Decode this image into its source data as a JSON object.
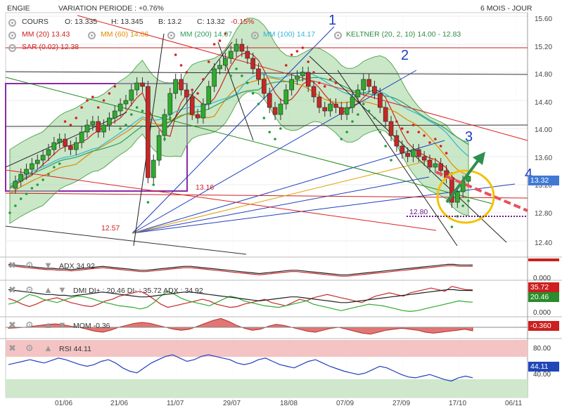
{
  "header": {
    "instrument": "ENGIE",
    "variation": "VARIATION PERIODE : +0.76%",
    "period": "6 MOIS - JOUR",
    "ohlc": {
      "label": "COURS",
      "open": "O: 13.335",
      "high": "H: 13.345",
      "low": "B: 13.2",
      "close": "C: 13.32",
      "change": "-0.15%"
    },
    "indicators": [
      {
        "label": "MM (20)",
        "value": "13.43",
        "color": "#cc2222"
      },
      {
        "label": "MM (60)",
        "value": "14.06",
        "color": "#e08a00"
      },
      {
        "label": "MM (200)",
        "value": "14.07",
        "color": "#2e9e5b"
      },
      {
        "label": "MM (100)",
        "value": "14.17",
        "color": "#33b5d6"
      },
      {
        "label": "KELTNER (20, 2, 10)",
        "value": "14.00 - 12.83",
        "color": "#2e8b3e"
      },
      {
        "label": "SAR (0.02)",
        "value": "12.38",
        "color": "#cc2222"
      }
    ]
  },
  "annotations": {
    "line_numbers": [
      "1",
      "2",
      "3",
      "4"
    ],
    "level_labels": [
      "13.16",
      "12.57",
      "12.80"
    ]
  },
  "panels": {
    "adx": {
      "label": "ADX",
      "value": "34.92",
      "tag": "0.000"
    },
    "dmi": {
      "label": "DMI",
      "text": "DI+ : 20.46 DI- : 35.72 ADX : 34.92",
      "tag_di_minus": "35.72",
      "tag_di_plus": "20.46",
      "tag_zero": "0.000"
    },
    "mom": {
      "label": "MOM",
      "value": "-0.36",
      "tag": "-0.360"
    },
    "rsi": {
      "label": "RSI",
      "value": "44.11",
      "tag": "44.11",
      "ticks": [
        "80.00",
        "40.00"
      ]
    }
  },
  "price_tag": "13.32",
  "icons": [
    "close-icon",
    "gear-icon",
    "arrow-up-icon",
    "arrow-down-icon"
  ],
  "chart_data": {
    "type": "line",
    "title": "ENGIE",
    "y_ticks": [
      "15.60",
      "15.20",
      "14.80",
      "14.40",
      "14.00",
      "13.60",
      "13.20",
      "12.80",
      "12.40"
    ],
    "x_ticks": [
      "01/06",
      "21/06",
      "11/07",
      "29/07",
      "18/08",
      "07/09",
      "27/09",
      "17/10",
      "06/11"
    ],
    "ylim": [
      12.25,
      15.65
    ],
    "last": 13.32,
    "series": [
      {
        "values": [
          13.15,
          13.25,
          13.35,
          13.42,
          13.5,
          13.55,
          13.62,
          13.7,
          13.8,
          13.85,
          13.75,
          13.7,
          13.8,
          13.95,
          14.05,
          14.1,
          13.95,
          14.05,
          14.15,
          14.25,
          14.35,
          14.4,
          14.55,
          14.65,
          14.6,
          13.3,
          13.55,
          13.9,
          14.2,
          14.5,
          14.7,
          14.55,
          14.45,
          14.2,
          14.15,
          14.35,
          14.6,
          14.85,
          14.9,
          15.0,
          15.1,
          15.2,
          15.1,
          15.0,
          14.85,
          14.7,
          14.5,
          14.3,
          14.2,
          14.35,
          14.55,
          14.7,
          14.75,
          14.8,
          14.6,
          14.45,
          14.3,
          14.25,
          14.35,
          14.3,
          14.2,
          14.3,
          14.45,
          14.55,
          14.7,
          14.6,
          14.5,
          14.3,
          14.1,
          13.9,
          13.75,
          13.65,
          13.6,
          13.7,
          13.6,
          13.55,
          13.45,
          13.5,
          13.4,
          13.3,
          12.95,
          13.1,
          13.25,
          13.32
        ]
      }
    ],
    "adx": [
      36,
      35,
      34,
      33,
      32,
      31,
      30,
      30,
      29,
      29,
      28,
      29,
      30,
      31,
      32,
      33,
      32,
      31,
      30,
      29,
      28,
      27,
      27,
      28,
      29,
      30,
      31,
      32,
      33,
      33,
      32,
      31,
      30,
      29,
      28,
      27,
      26,
      25,
      24,
      23,
      22,
      23,
      24,
      25,
      26,
      27,
      27,
      26,
      25,
      24,
      23,
      22,
      21,
      20,
      20,
      21,
      22,
      23,
      24,
      25,
      26,
      27,
      28,
      29,
      30,
      31,
      32,
      33,
      34,
      35,
      36,
      36,
      35,
      35,
      34.92
    ],
    "dmi_plus": [
      18,
      20,
      25,
      30,
      28,
      24,
      22,
      20,
      23,
      26,
      28,
      27,
      25,
      22,
      20,
      18,
      16,
      15,
      14,
      12,
      14,
      20,
      28,
      34,
      30,
      25,
      22,
      20,
      18,
      16,
      20,
      24,
      28,
      26,
      22,
      20,
      18,
      16,
      15,
      14,
      16,
      18,
      20,
      22,
      18,
      16,
      14,
      12,
      10,
      12,
      14,
      16,
      18,
      17,
      16,
      14,
      12,
      10,
      9,
      10,
      12,
      14,
      16,
      18,
      20,
      22,
      21,
      20.46
    ],
    "dmi_minus": [
      25,
      22,
      18,
      15,
      18,
      22,
      24,
      26,
      23,
      20,
      18,
      16,
      15,
      18,
      22,
      24,
      28,
      30,
      32,
      34,
      30,
      24,
      18,
      14,
      16,
      18,
      20,
      22,
      24,
      22,
      18,
      16,
      14,
      15,
      18,
      20,
      22,
      24,
      20,
      18,
      16,
      20,
      24,
      22,
      26,
      28,
      30,
      28,
      26,
      24,
      22,
      20,
      24,
      28,
      30,
      32,
      30,
      28,
      32,
      34,
      36,
      38,
      36,
      34,
      40,
      38,
      36,
      35.72
    ],
    "mom": [
      -0.1,
      -0.05,
      0.0,
      0.1,
      0.2,
      0.3,
      0.35,
      0.25,
      0.1,
      0.0,
      -0.2,
      -0.4,
      -0.5,
      -0.3,
      0.0,
      0.2,
      0.4,
      0.5,
      0.4,
      0.2,
      0.0,
      -0.2,
      -0.3,
      -0.2,
      0.1,
      0.4,
      0.7,
      0.9,
      0.6,
      0.2,
      -0.1,
      -0.3,
      -0.2,
      0.1,
      0.3,
      0.2,
      0.0,
      -0.2,
      -0.4,
      -0.5,
      -0.3,
      -0.1,
      0.0,
      -0.2,
      -0.4,
      -0.6,
      -0.7,
      -0.5,
      -0.3,
      -0.2,
      -0.1,
      -0.2,
      -0.3,
      -0.5,
      -0.6,
      -0.5,
      -0.4,
      -0.3,
      -0.2,
      -0.36
    ],
    "rsi": [
      60,
      62,
      64,
      66,
      64,
      62,
      65,
      68,
      66,
      63,
      60,
      58,
      60,
      64,
      66,
      62,
      56,
      52,
      50,
      56,
      62,
      66,
      70,
      72,
      68,
      64,
      66,
      70,
      72,
      70,
      68,
      66,
      62,
      60,
      62,
      66,
      68,
      64,
      60,
      58,
      56,
      60,
      64,
      66,
      62,
      58,
      55,
      52,
      50,
      48,
      50,
      54,
      58,
      56,
      52,
      48,
      45,
      44,
      46,
      48,
      45,
      42,
      40,
      44,
      46,
      44.11
    ]
  }
}
